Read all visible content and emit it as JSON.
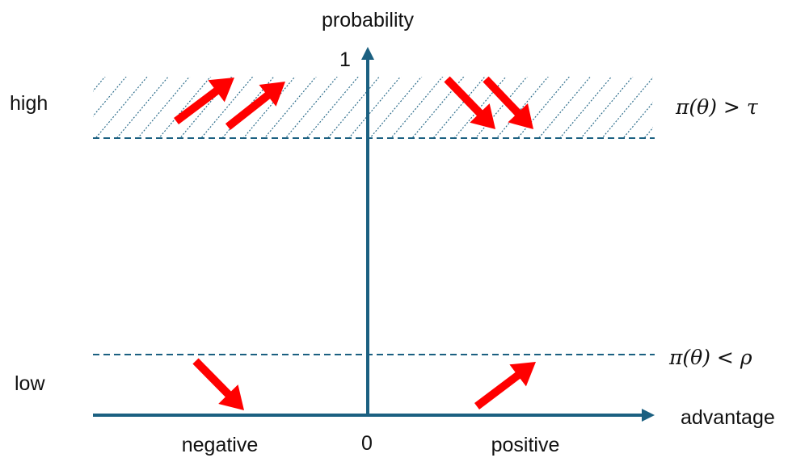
{
  "labels": {
    "y_axis_title": "probability",
    "x_axis_title": "advantage",
    "y_top_tick": "1",
    "origin_tick": "0",
    "high_label": "high",
    "low_label": "low",
    "negative_label": "negative",
    "positive_label": "positive",
    "upper_threshold": "π(θ) > τ",
    "lower_threshold": "π(θ) < ρ"
  },
  "colors": {
    "axis": "#1b6081",
    "arrow": "#ff0000",
    "text": "#111111"
  }
}
